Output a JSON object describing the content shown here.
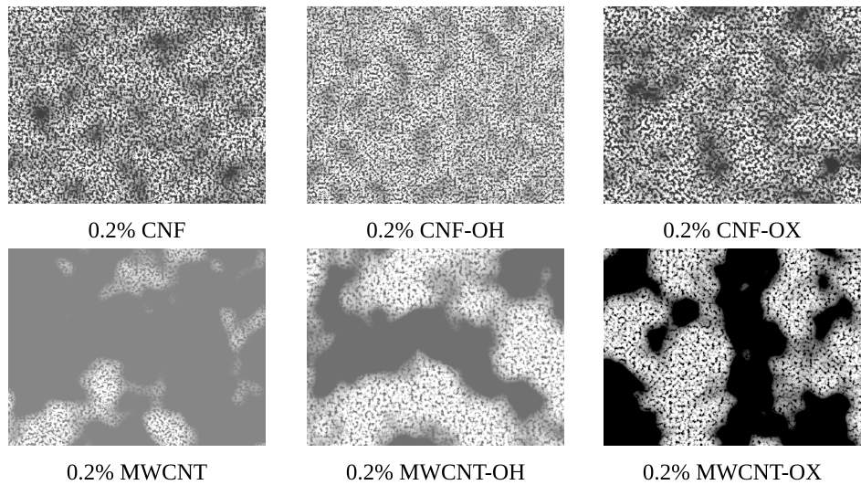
{
  "panels": [
    {
      "caption": "0.2% CNF"
    },
    {
      "caption": "0.2% CNF-OH"
    },
    {
      "caption": "0.2% CNF-OX"
    },
    {
      "caption": "0.2% MWCNT"
    },
    {
      "caption": "0.2% MWCNT-OH"
    },
    {
      "caption": "0.2% MWCNT-OX"
    }
  ]
}
